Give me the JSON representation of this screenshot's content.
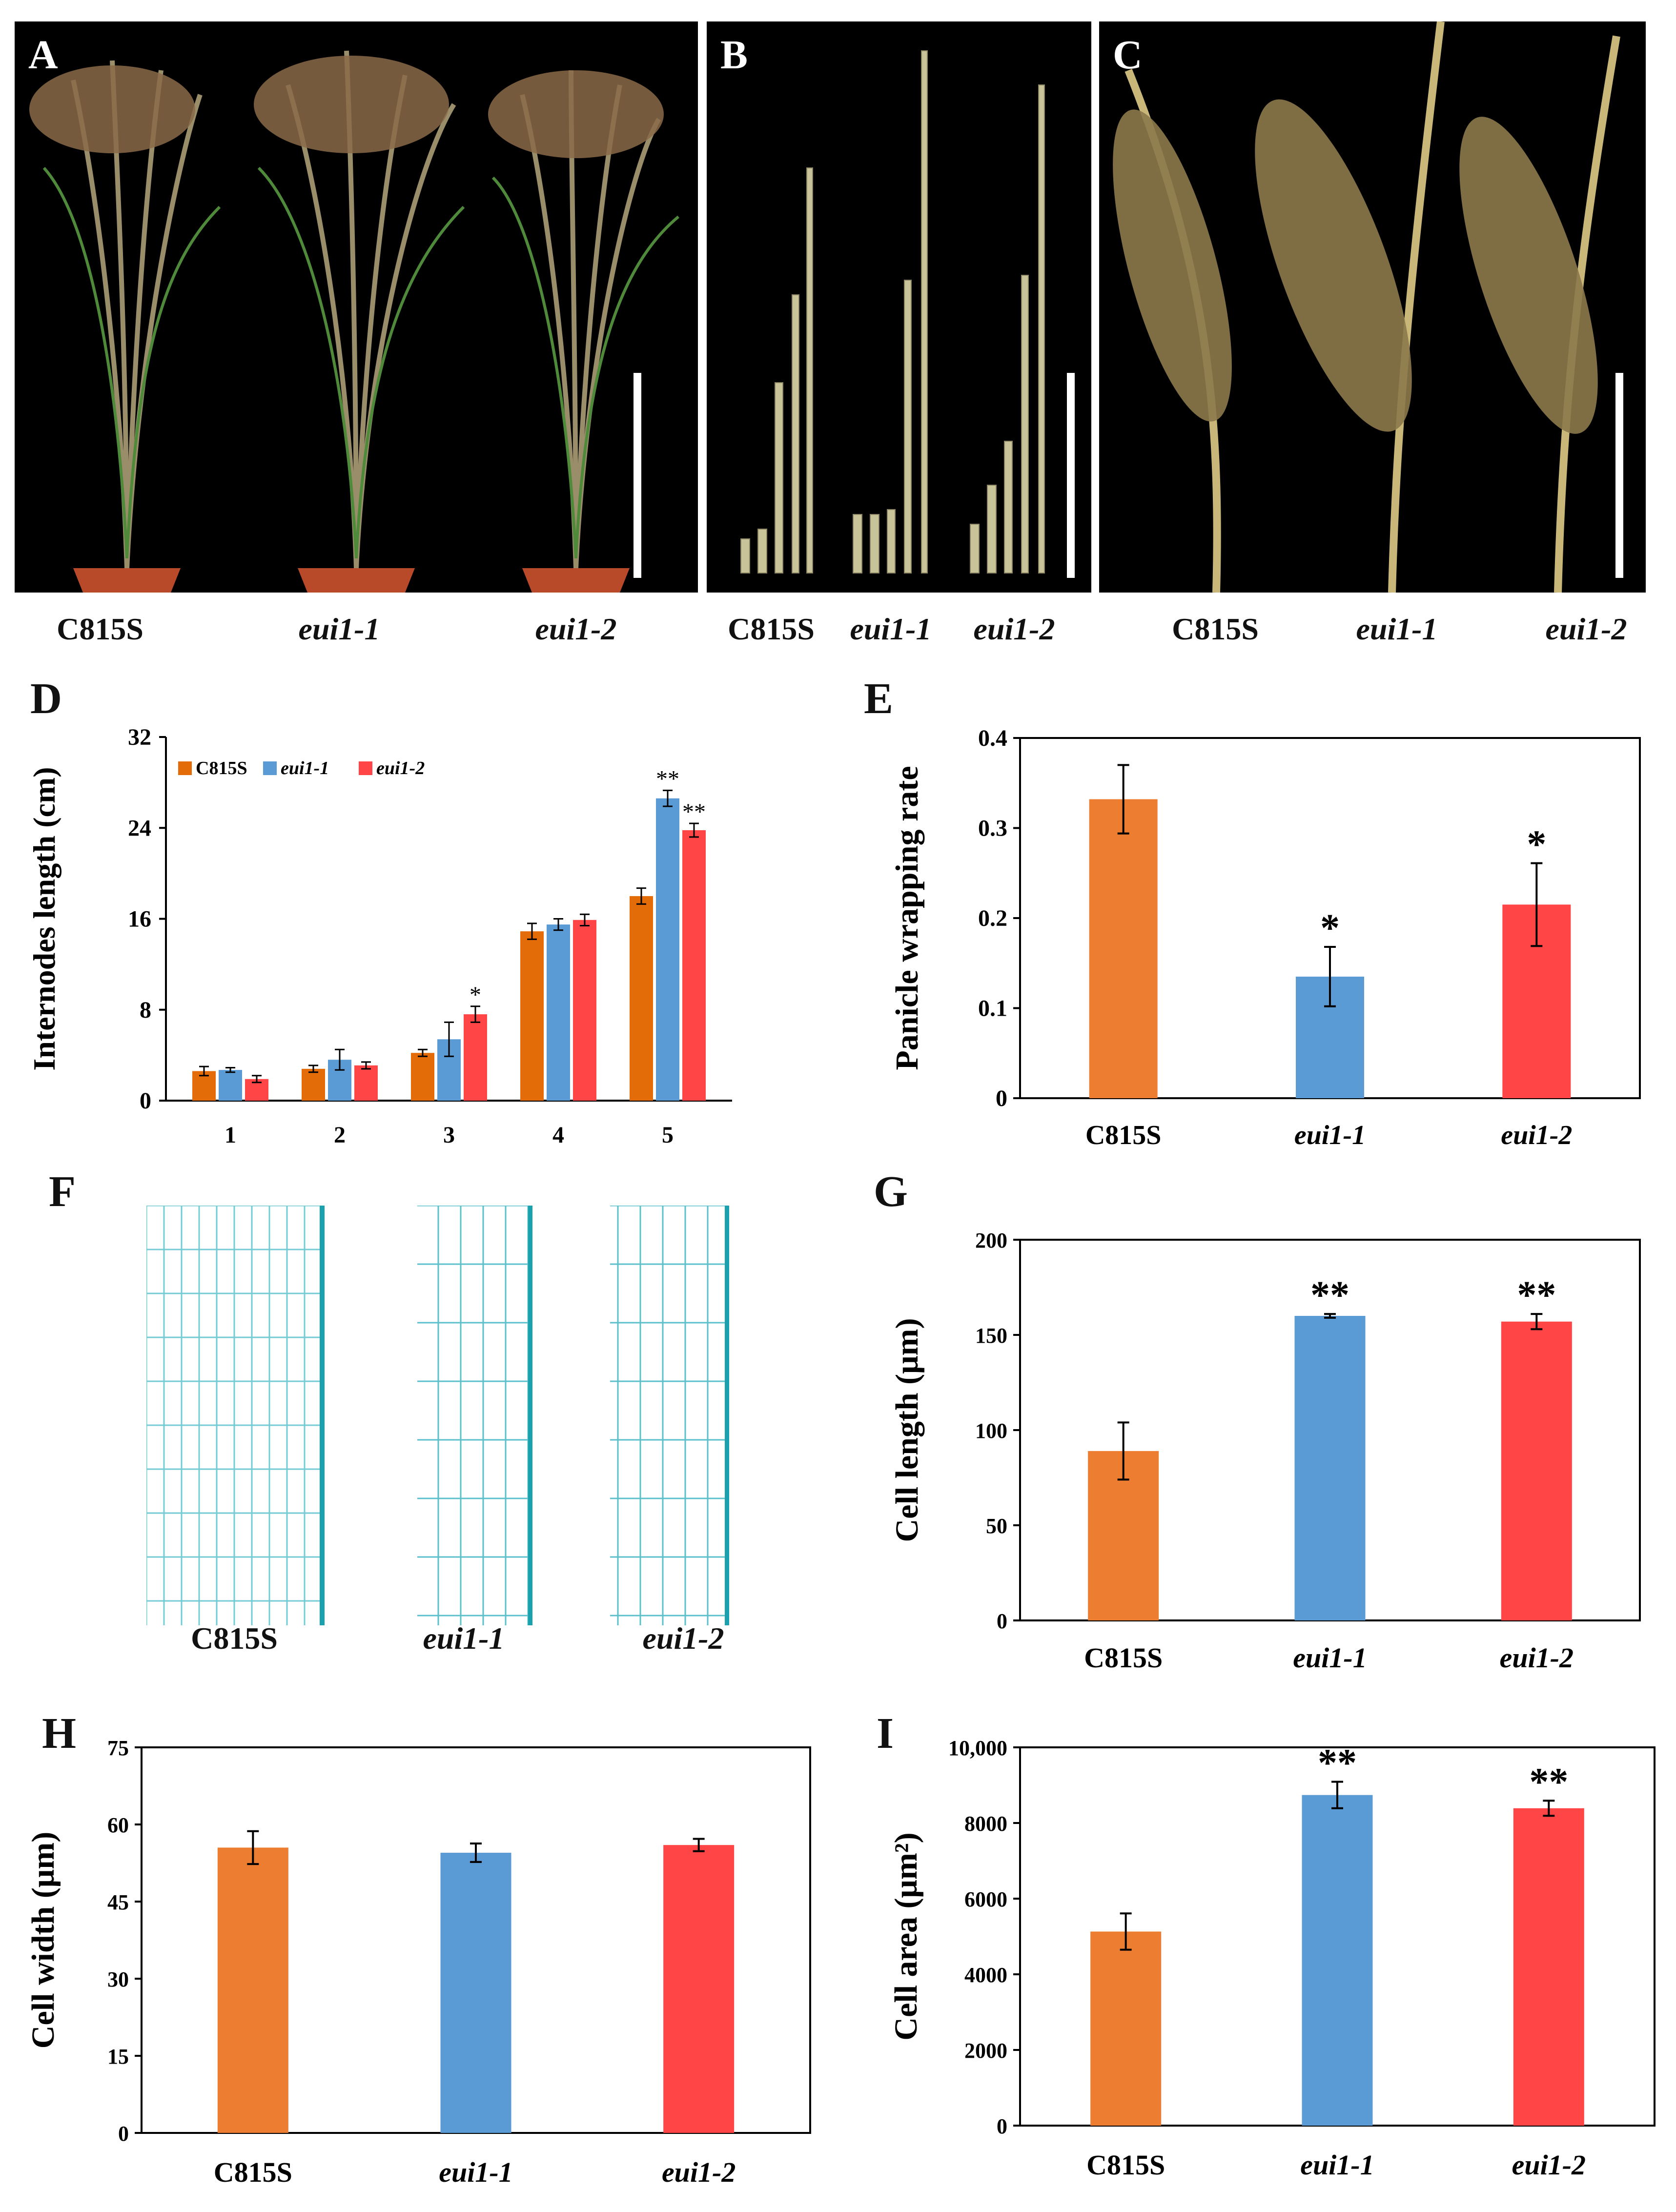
{
  "panel_letters": [
    "A",
    "B",
    "C",
    "D",
    "E",
    "F",
    "G",
    "H",
    "I"
  ],
  "genotypes": [
    "C815S",
    "eui1-1",
    "eui1-2"
  ],
  "colors": {
    "C815S": "#ED7D31",
    "eui1-1": "#5B9BD5",
    "eui1-2": "#FF4545",
    "dark_orange": "#E36C09"
  },
  "chart_data": [
    {
      "panel": "D",
      "type": "bar",
      "ylabel": "Internodes length (cm)",
      "categories": [
        "1",
        "2",
        "3",
        "4",
        "5"
      ],
      "ylim": [
        0,
        32
      ],
      "yticks": [
        "0",
        "8",
        "16",
        "24",
        "32"
      ],
      "legend": {
        "placement": "top-left",
        "entries": [
          "C815S",
          "eui1-1",
          "eui1-2"
        ]
      },
      "series": [
        {
          "name": "C815S",
          "values": [
            2.6,
            2.8,
            4.2,
            14.9,
            18.0
          ],
          "errors": [
            0.4,
            0.3,
            0.3,
            0.7,
            0.7
          ]
        },
        {
          "name": "eui1-1",
          "values": [
            2.7,
            3.6,
            5.4,
            15.5,
            26.6
          ],
          "errors": [
            0.2,
            0.9,
            1.5,
            0.5,
            0.7
          ]
        },
        {
          "name": "eui1-2",
          "values": [
            1.9,
            3.1,
            7.6,
            15.9,
            23.8
          ],
          "errors": [
            0.3,
            0.3,
            0.7,
            0.5,
            0.6
          ]
        }
      ],
      "significance": [
        {
          "category": "3",
          "series": "eui1-2",
          "mark": "*"
        },
        {
          "category": "5",
          "series": "eui1-1",
          "mark": "**"
        },
        {
          "category": "5",
          "series": "eui1-2",
          "mark": "**"
        }
      ]
    },
    {
      "panel": "E",
      "type": "bar",
      "ylabel": "Panicle wrapping rate",
      "categories": [
        "C815S",
        "eui1-1",
        "eui1-2"
      ],
      "values": [
        0.332,
        0.135,
        0.215
      ],
      "errors": [
        0.038,
        0.033,
        0.046
      ],
      "ylim": [
        0,
        0.4
      ],
      "yticks": [
        "0",
        "0.1",
        "0.2",
        "0.3",
        "0.4"
      ],
      "significance": [
        "",
        "*",
        "*"
      ]
    },
    {
      "panel": "G",
      "type": "bar",
      "ylabel": "Cell length (μm)",
      "categories": [
        "C815S",
        "eui1-1",
        "eui1-2"
      ],
      "values": [
        89,
        160,
        157
      ],
      "errors": [
        15,
        1,
        4
      ],
      "ylim": [
        0,
        200
      ],
      "yticks": [
        "0",
        "50",
        "100",
        "150",
        "200"
      ],
      "significance": [
        "",
        "**",
        "**"
      ]
    },
    {
      "panel": "H",
      "type": "bar",
      "ylabel": "Cell width (μm)",
      "categories": [
        "C815S",
        "eui1-1",
        "eui1-2"
      ],
      "values": [
        55.5,
        54.5,
        56
      ],
      "errors": [
        3.2,
        1.8,
        1.2
      ],
      "ylim": [
        0,
        75
      ],
      "yticks": [
        "0",
        "15",
        "30",
        "45",
        "60",
        "75"
      ],
      "significance": [
        "",
        "",
        ""
      ]
    },
    {
      "panel": "I",
      "type": "bar",
      "ylabel": "Cell area (μm²)",
      "categories": [
        "C815S",
        "eui1-1",
        "eui1-2"
      ],
      "values": [
        5130,
        8740,
        8390
      ],
      "errors": [
        480,
        350,
        200
      ],
      "ylim": [
        0,
        10000
      ],
      "yticks": [
        "0",
        "2000",
        "4000",
        "6000",
        "8000",
        "10,000"
      ],
      "significance": [
        "",
        "**",
        "**"
      ]
    }
  ]
}
